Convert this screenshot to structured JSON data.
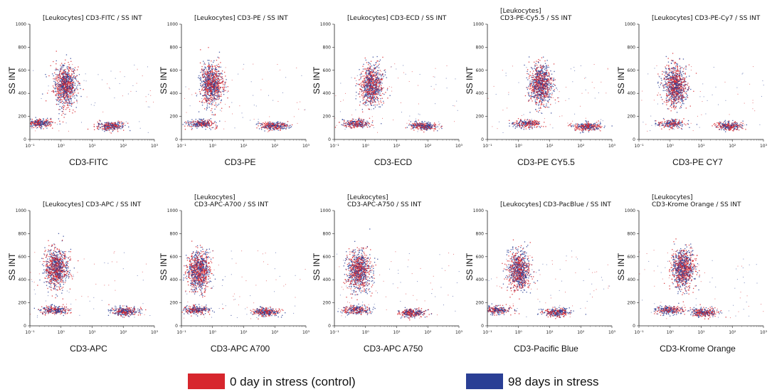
{
  "colors": {
    "control": "#d7262d",
    "stress": "#2a3f95"
  },
  "legend": [
    {
      "label": "0 day in stress (control)",
      "color": "#d7262d"
    },
    {
      "label": "98 days in stress",
      "color": "#2a3f95"
    }
  ],
  "chart_data": [
    {
      "type": "scatter",
      "title_lines": [
        "[Leukocytes] CD3-FITC / SS INT"
      ],
      "xlabel": "CD3-FITC",
      "ylabel": "SS INT",
      "ylim": [
        0,
        1000
      ],
      "yticks": [
        0,
        200,
        400,
        600,
        800,
        1000
      ],
      "x_log_decades": [
        -1,
        3
      ],
      "xticks": [
        "10⁻¹",
        "10⁰",
        "10¹",
        "10²",
        "10³"
      ],
      "populations": [
        {
          "x": 1.3,
          "y": 470,
          "n": 900
        },
        {
          "x": 0.2,
          "y": 145,
          "n": 260
        },
        {
          "x": 38,
          "y": 120,
          "n": 300
        }
      ]
    },
    {
      "type": "scatter",
      "title_lines": [
        "[Leukocytes] CD3-PE / SS INT"
      ],
      "xlabel": "CD3-PE",
      "ylabel": "SS INT",
      "ylim": [
        0,
        1000
      ],
      "yticks": [
        0,
        200,
        400,
        600,
        800,
        1000
      ],
      "x_log_decades": [
        -1,
        3
      ],
      "xticks": [
        "10⁻¹",
        "10⁰",
        "10¹",
        "10²",
        "10³"
      ],
      "populations": [
        {
          "x": 0.9,
          "y": 480,
          "n": 900
        },
        {
          "x": 0.4,
          "y": 140,
          "n": 260
        },
        {
          "x": 90,
          "y": 120,
          "n": 300
        }
      ]
    },
    {
      "type": "scatter",
      "title_lines": [
        "[Leukocytes] CD3-ECD / SS INT"
      ],
      "xlabel": "CD3-ECD",
      "ylabel": "SS INT",
      "ylim": [
        0,
        1000
      ],
      "yticks": [
        0,
        200,
        400,
        600,
        800,
        1000
      ],
      "x_log_decades": [
        -1,
        3
      ],
      "xticks": [
        "10⁻¹",
        "10⁰",
        "10¹",
        "10²",
        "10³"
      ],
      "populations": [
        {
          "x": 1.5,
          "y": 470,
          "n": 850
        },
        {
          "x": 0.5,
          "y": 140,
          "n": 250
        },
        {
          "x": 70,
          "y": 120,
          "n": 300
        }
      ]
    },
    {
      "type": "scatter",
      "title_lines": [
        "[Leukocytes]",
        "CD3-PE-Cy5.5 / SS INT"
      ],
      "xlabel": "CD3-PE CY5.5",
      "ylabel": "SS INT",
      "ylim": [
        0,
        1000
      ],
      "yticks": [
        0,
        200,
        400,
        600,
        800,
        1000
      ],
      "x_log_decades": [
        -1,
        3
      ],
      "xticks": [
        "10⁻¹",
        "10⁰",
        "10¹",
        "10²",
        "10³"
      ],
      "populations": [
        {
          "x": 5,
          "y": 480,
          "n": 900
        },
        {
          "x": 1.8,
          "y": 140,
          "n": 250
        },
        {
          "x": 160,
          "y": 115,
          "n": 300
        }
      ]
    },
    {
      "type": "scatter",
      "title_lines": [
        "[Leukocytes] CD3-PE-Cy7 / SS INT"
      ],
      "xlabel": "CD3-PE CY7",
      "ylabel": "SS INT",
      "ylim": [
        0,
        1000
      ],
      "yticks": [
        0,
        200,
        400,
        600,
        800,
        1000
      ],
      "x_log_decades": [
        -1,
        3
      ],
      "xticks": [
        "10⁻¹",
        "10⁰",
        "10¹",
        "10²",
        "10³"
      ],
      "populations": [
        {
          "x": 1.4,
          "y": 470,
          "n": 900
        },
        {
          "x": 1.0,
          "y": 140,
          "n": 220
        },
        {
          "x": 80,
          "y": 120,
          "n": 280
        }
      ]
    },
    {
      "type": "scatter",
      "title_lines": [
        "[Leukocytes] CD3-APC / SS INT"
      ],
      "xlabel": "CD3-APC",
      "ylabel": "SS INT",
      "ylim": [
        0,
        1000
      ],
      "yticks": [
        0,
        200,
        400,
        600,
        800,
        1000
      ],
      "x_log_decades": [
        -1,
        3
      ],
      "xticks": [
        "10⁻¹",
        "10⁰",
        "10¹",
        "10²",
        "10³"
      ],
      "populations": [
        {
          "x": 0.7,
          "y": 500,
          "n": 900
        },
        {
          "x": 0.6,
          "y": 140,
          "n": 260
        },
        {
          "x": 110,
          "y": 130,
          "n": 300
        }
      ]
    },
    {
      "type": "scatter",
      "title_lines": [
        "[Leukocytes]",
        "CD3-APC-A700 / SS INT"
      ],
      "xlabel": "CD3-APC A700",
      "ylabel": "SS INT",
      "ylim": [
        0,
        1000
      ],
      "yticks": [
        0,
        200,
        400,
        600,
        800,
        1000
      ],
      "x_log_decades": [
        -1,
        3
      ],
      "xticks": [
        "10⁻¹",
        "10⁰",
        "10¹",
        "10²",
        "10³"
      ],
      "populations": [
        {
          "x": 0.35,
          "y": 480,
          "n": 900
        },
        {
          "x": 0.3,
          "y": 140,
          "n": 260
        },
        {
          "x": 50,
          "y": 125,
          "n": 300
        }
      ]
    },
    {
      "type": "scatter",
      "title_lines": [
        "[Leukocytes]",
        "CD3-APC-A750 / SS INT"
      ],
      "xlabel": "CD3-APC A750",
      "ylabel": "SS INT",
      "ylim": [
        0,
        1000
      ],
      "yticks": [
        0,
        200,
        400,
        600,
        800,
        1000
      ],
      "x_log_decades": [
        -1,
        3
      ],
      "xticks": [
        "10⁻¹",
        "10⁰",
        "10¹",
        "10²",
        "10³"
      ],
      "populations": [
        {
          "x": 0.6,
          "y": 480,
          "n": 900
        },
        {
          "x": 0.5,
          "y": 140,
          "n": 250
        },
        {
          "x": 30,
          "y": 115,
          "n": 300
        }
      ]
    },
    {
      "type": "scatter",
      "title_lines": [
        "[Leukocytes] CD3-PacBlue / SS INT"
      ],
      "xlabel": "CD3-Pacific Blue",
      "ylabel": "SS INT",
      "ylim": [
        0,
        1000
      ],
      "yticks": [
        0,
        200,
        400,
        600,
        800,
        1000
      ],
      "x_log_decades": [
        -1,
        3
      ],
      "xticks": [
        "10⁻¹",
        "10⁰",
        "10¹",
        "10²",
        "10³"
      ],
      "populations": [
        {
          "x": 1.0,
          "y": 480,
          "n": 850
        },
        {
          "x": 0.2,
          "y": 140,
          "n": 250
        },
        {
          "x": 16,
          "y": 120,
          "n": 300
        }
      ]
    },
    {
      "type": "scatter",
      "title_lines": [
        "[Leukocytes]",
        "CD3-Krome Orange / SS INT"
      ],
      "xlabel": "CD3-Krome Orange",
      "ylabel": "SS INT",
      "ylim": [
        0,
        1000
      ],
      "yticks": [
        0,
        200,
        400,
        600,
        800,
        1000
      ],
      "x_log_decades": [
        -1,
        3
      ],
      "xticks": [
        "10⁻¹",
        "10⁰",
        "10¹",
        "10²",
        "10³"
      ],
      "populations": [
        {
          "x": 2.5,
          "y": 500,
          "n": 900
        },
        {
          "x": 0.9,
          "y": 140,
          "n": 240
        },
        {
          "x": 12,
          "y": 120,
          "n": 300
        }
      ]
    }
  ]
}
